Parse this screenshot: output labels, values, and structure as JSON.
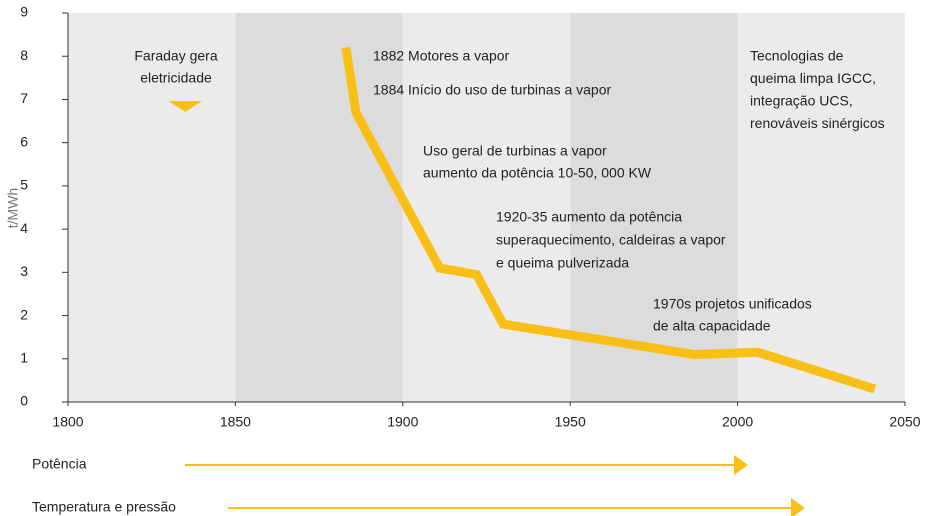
{
  "chart_data": {
    "type": "line",
    "ylabel": "t/MWh",
    "x": [
      1883,
      1886,
      1911,
      1922,
      1930,
      1987,
      2006,
      2041
    ],
    "series": [
      {
        "color": "#f9bf16",
        "values": [
          8.2,
          6.7,
          3.1,
          2.95,
          1.8,
          1.1,
          1.15,
          0.3
        ]
      }
    ],
    "xlim": [
      1800,
      2050
    ],
    "xticks": [
      1800,
      1850,
      1900,
      1950,
      2000,
      2050
    ],
    "ylim": [
      0,
      9
    ],
    "yticks": [
      0,
      1,
      2,
      3,
      4,
      5,
      6,
      7,
      8,
      9
    ],
    "annotations": [
      {
        "lines": [
          "Faraday gera",
          "eletricidade"
        ]
      },
      {
        "lines": [
          "1882 Motores a vapor"
        ]
      },
      {
        "lines": [
          "1884 Início do uso de turbinas a vapor"
        ]
      },
      {
        "lines": [
          "Uso geral de turbinas a vapor",
          "aumento da potência 10-50, 000 KW"
        ]
      },
      {
        "lines": [
          "1920-35 aumento da potência",
          "superaquecimento, caldeiras a vapor",
          "e queima pulverizada"
        ]
      },
      {
        "lines": [
          "1970s projetos unificados",
          "de alta capacidade"
        ]
      },
      {
        "lines": [
          "Tecnologias de",
          "queima limpa IGCC,",
          "integração UCS,",
          "renováveis sinérgicos"
        ]
      }
    ],
    "arrows": [
      {
        "label": "Potência"
      },
      {
        "label": "Temperatura e pressão"
      }
    ]
  }
}
